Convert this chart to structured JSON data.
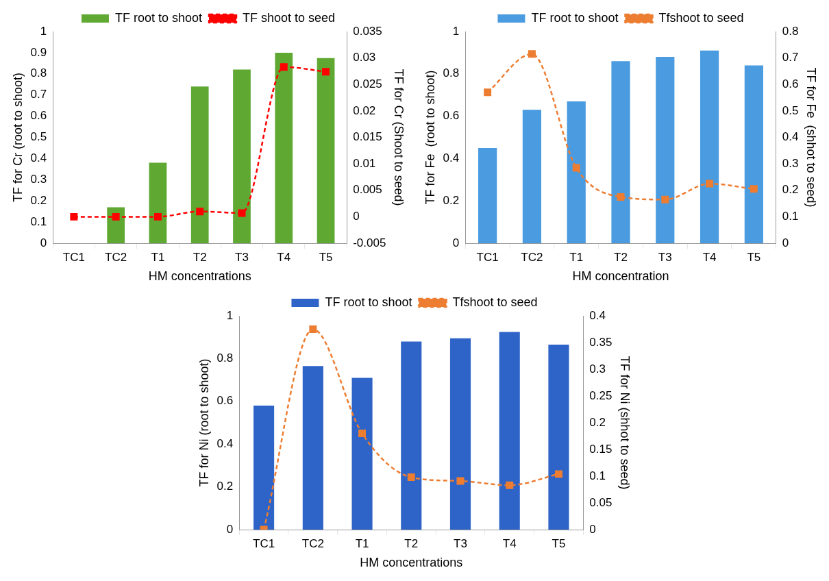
{
  "chart_data": [
    {
      "type": "bar",
      "categories": [
        "TC1",
        "TC2",
        "T1",
        "T2",
        "T3",
        "T4",
        "T5"
      ],
      "xlabel": "HM concentrations",
      "ylabel": "TF for Cr (root to shoot)",
      "y2label": "TF for Cr (Shoot to seed)",
      "ylim": [
        0,
        1
      ],
      "yticks": [
        0,
        0.1,
        0.2,
        0.3,
        0.4,
        0.5,
        0.6,
        0.7,
        0.8,
        0.9,
        1
      ],
      "y2lim": [
        -0.005,
        0.035
      ],
      "y2ticks": [
        -0.005,
        0,
        0.005,
        0.01,
        0.015,
        0.02,
        0.025,
        0.03,
        0.035
      ],
      "legend": "top",
      "grid": false,
      "series": [
        {
          "name": "TF root to shoot",
          "color": "#5fa832",
          "values": [
            0,
            0.17,
            0.38,
            0.74,
            0.82,
            0.9,
            0.875
          ]
        },
        {
          "name": "TF shoot to seed",
          "type": "line",
          "axis": "y2",
          "color": "#ff0000",
          "marker": "square",
          "line_style": "dashed",
          "values": [
            0,
            0,
            0,
            0.001,
            0.0007,
            0.0283,
            0.0274
          ]
        }
      ]
    },
    {
      "type": "bar",
      "categories": [
        "TC1",
        "TC2",
        "T1",
        "T2",
        "T3",
        "T4",
        "T5"
      ],
      "xlabel": "HM concentration",
      "ylabel": "TF for Fe  (root to shoot)",
      "y2label": "TF for Fe  (shhot to seed)",
      "ylim": [
        0,
        1
      ],
      "yticks": [
        0,
        0.2,
        0.4,
        0.6,
        0.8,
        1
      ],
      "y2lim": [
        0,
        0.8
      ],
      "y2ticks": [
        0,
        0.1,
        0.2,
        0.3,
        0.4,
        0.5,
        0.6,
        0.7,
        0.8
      ],
      "legend": "top",
      "grid": false,
      "series": [
        {
          "name": "TF root to shoot",
          "color": "#4a9be0",
          "values": [
            0.45,
            0.63,
            0.67,
            0.86,
            0.88,
            0.91,
            0.84
          ]
        },
        {
          "name": "Tfshoot to seed",
          "type": "line",
          "axis": "y2",
          "color": "#ed7d31",
          "marker": "square",
          "line_style": "dashed",
          "values": [
            0.57,
            0.715,
            0.285,
            0.175,
            0.165,
            0.225,
            0.205
          ]
        }
      ]
    },
    {
      "type": "bar",
      "categories": [
        "TC1",
        "TC2",
        "T1",
        "T2",
        "T3",
        "T4",
        "T5"
      ],
      "xlabel": "HM concentrations",
      "ylabel": "TF for Ni (root to shoot)",
      "y2label": "TF for Ni (shhot to seed)",
      "ylim": [
        0,
        1
      ],
      "yticks": [
        0,
        0.2,
        0.4,
        0.6,
        0.8,
        1
      ],
      "y2lim": [
        0,
        0.4
      ],
      "y2ticks": [
        0,
        0.05,
        0.1,
        0.15,
        0.2,
        0.25,
        0.3,
        0.35,
        0.4
      ],
      "legend": "top",
      "grid": false,
      "series": [
        {
          "name": "TF root to shoot",
          "color": "#2e64c8",
          "values": [
            0.58,
            0.765,
            0.71,
            0.88,
            0.895,
            0.925,
            0.865
          ]
        },
        {
          "name": "Tfshoot to seed",
          "type": "line",
          "axis": "y2",
          "color": "#ed7d31",
          "marker": "square",
          "line_style": "dashed",
          "values": [
            0,
            0.375,
            0.18,
            0.098,
            0.091,
            0.083,
            0.104
          ]
        }
      ]
    }
  ]
}
